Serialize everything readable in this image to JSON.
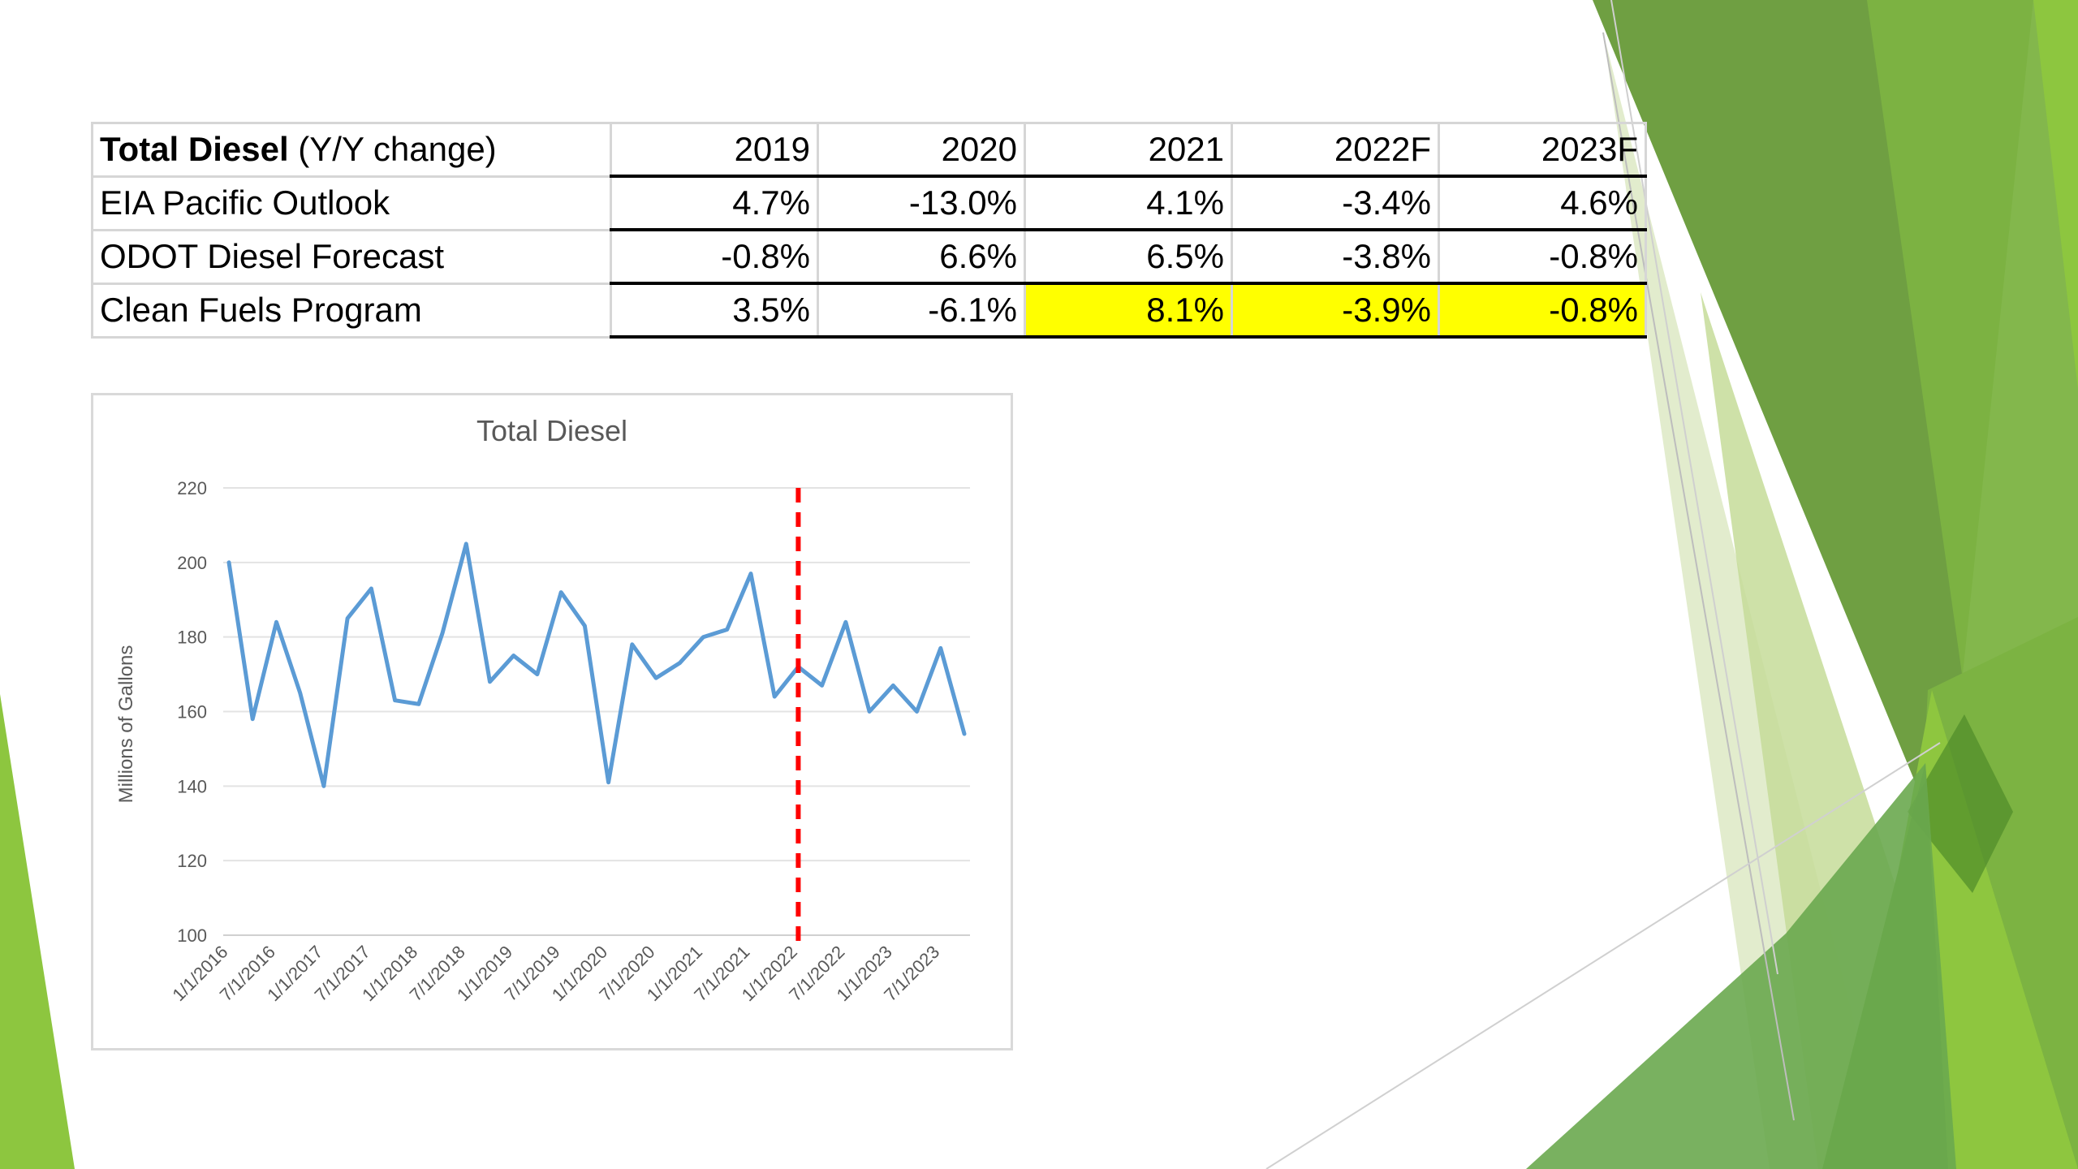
{
  "table": {
    "header": {
      "title_bold": "Total Diesel",
      "title_rest": " (Y/Y change)",
      "years": [
        "2019",
        "2020",
        "2021",
        "2022F",
        "2023F"
      ]
    },
    "rows": [
      {
        "label": "EIA Pacific Outlook",
        "values": [
          "4.7%",
          "-13.0%",
          "4.1%",
          "-3.4%",
          "4.6%"
        ]
      },
      {
        "label": "ODOT Diesel Forecast",
        "values": [
          "-0.8%",
          "6.6%",
          "6.5%",
          "-3.8%",
          "-0.8%"
        ]
      },
      {
        "label": "Clean Fuels Program",
        "values": [
          "3.5%",
          "-6.1%",
          "8.1%",
          "-3.9%",
          "-0.8%"
        ]
      }
    ],
    "highlight_color": "#ffff00"
  },
  "chart_data": {
    "type": "line",
    "title": "Total Diesel",
    "xlabel": "",
    "ylabel": "Millions of Gallons",
    "ylim": [
      100,
      220
    ],
    "yticks": [
      100,
      120,
      140,
      160,
      180,
      200,
      220
    ],
    "grid": true,
    "legend": "none",
    "x_tick_labels": [
      "1/1/2016",
      "7/1/2016",
      "1/1/2017",
      "7/1/2017",
      "1/1/2018",
      "7/1/2018",
      "1/1/2019",
      "7/1/2019",
      "1/1/2020",
      "7/1/2020",
      "1/1/2021",
      "7/1/2021",
      "1/1/2022",
      "7/1/2022",
      "1/1/2023",
      "7/1/2023"
    ],
    "x": [
      "1/1/2016",
      "4/1/2016",
      "7/1/2016",
      "10/1/2016",
      "1/1/2017",
      "4/1/2017",
      "7/1/2017",
      "10/1/2017",
      "1/1/2018",
      "4/1/2018",
      "7/1/2018",
      "10/1/2018",
      "1/1/2019",
      "4/1/2019",
      "7/1/2019",
      "10/1/2019",
      "1/1/2020",
      "4/1/2020",
      "7/1/2020",
      "10/1/2020",
      "1/1/2021",
      "4/1/2021",
      "7/1/2021",
      "10/1/2021",
      "1/1/2022",
      "4/1/2022",
      "7/1/2022",
      "10/1/2022",
      "1/1/2023",
      "4/1/2023",
      "7/1/2023",
      "10/1/2023"
    ],
    "series": [
      {
        "color": "#5b9bd5",
        "values": [
          200,
          158,
          184,
          165,
          140,
          185,
          193,
          163,
          162,
          181,
          205,
          168,
          175,
          170,
          192,
          183,
          141,
          178,
          169,
          173,
          180,
          182,
          197,
          164,
          172,
          167,
          184,
          160,
          167,
          160,
          177,
          154
        ]
      }
    ],
    "forecast_marker": {
      "x": "1/1/2022",
      "color": "#ff0000",
      "style": "dashed"
    }
  }
}
